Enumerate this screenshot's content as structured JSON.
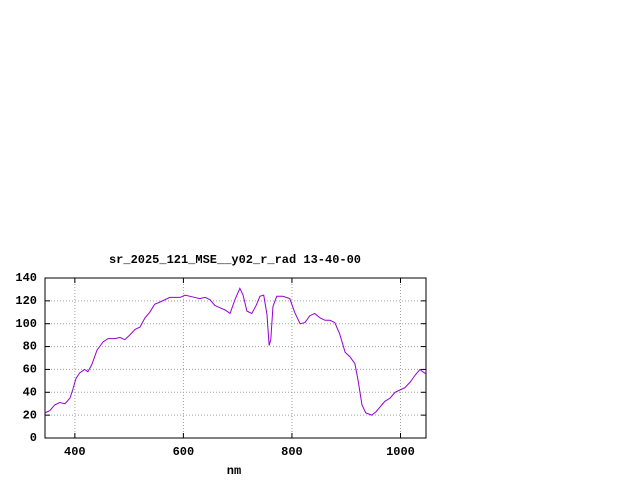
{
  "chart_data": {
    "type": "line",
    "title": "sr_2025_121_MSE__y02_r_rad 13-40-00",
    "x_label": "nm",
    "series": [
      {
        "color": "#9400d3",
        "x": [
          345,
          354,
          363,
          372,
          382,
          391,
          396,
          402,
          409,
          418,
          424,
          431,
          441,
          452,
          461,
          474,
          483,
          492,
          501,
          511,
          520,
          529,
          538,
          547,
          557,
          575,
          584,
          594,
          603,
          621,
          630,
          640,
          649,
          658,
          667,
          677,
          686,
          695,
          704,
          710,
          717,
          726,
          734,
          741,
          748,
          754,
          758,
          761,
          765,
          772,
          783,
          796,
          805,
          815,
          824,
          833,
          842,
          852,
          861,
          870,
          879,
          888,
          898,
          907,
          916,
          922,
          929,
          936,
          947,
          955,
          962,
          971,
          981,
          990,
          999,
          1008,
          1018,
          1027,
          1036,
          1041,
          1047
        ],
        "values": [
          22,
          24,
          29,
          31,
          30,
          35,
          42,
          52,
          57,
          60,
          58,
          64,
          77,
          84,
          87,
          87,
          88,
          86,
          90,
          95,
          97,
          105,
          110,
          117,
          119,
          123,
          123,
          123,
          125,
          123,
          122,
          123,
          121,
          116,
          114,
          112,
          109,
          121,
          131,
          125,
          111,
          109,
          116,
          124,
          125,
          108,
          81,
          86,
          115,
          124,
          124,
          122,
          110,
          100,
          101,
          107,
          109,
          105,
          103,
          103,
          101,
          91,
          75,
          71,
          65,
          50,
          29,
          22,
          20,
          23,
          27,
          32,
          35,
          40,
          42,
          44,
          49,
          55,
          60,
          58,
          56
        ]
      }
    ],
    "xlim": [
      345,
      1047
    ],
    "ylim": [
      0,
      140
    ],
    "xticks": [
      400,
      600,
      800,
      1000
    ],
    "yticks": [
      0,
      20,
      40,
      60,
      80,
      100,
      120,
      140
    ],
    "grid": true
  }
}
